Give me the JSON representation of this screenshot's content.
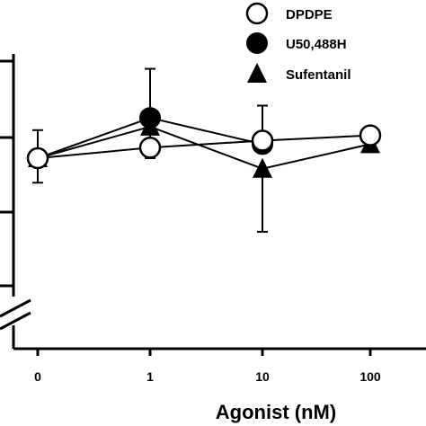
{
  "chart_data": {
    "type": "line",
    "x_scale": "categorical-log",
    "categories": [
      "0",
      "1",
      "10",
      "100"
    ],
    "xlabel": "Agonist (nM)",
    "ylabel": "",
    "y_ticks_visible": 4,
    "y_axis_break": true,
    "legend_position": "top-right",
    "series": [
      {
        "name": "DPDPE",
        "marker": "open-circle",
        "x": [
          "0",
          "1",
          "10",
          "100"
        ],
        "values": [
          1.0,
          1.06,
          1.1,
          1.13
        ],
        "err_low": [
          null,
          0.06,
          null,
          null
        ],
        "err_high": [
          null,
          null,
          0.2,
          null
        ]
      },
      {
        "name": "U50,488H",
        "marker": "filled-circle",
        "x": [
          "0",
          "1",
          "10"
        ],
        "values": [
          1.0,
          1.23,
          1.08
        ],
        "err_low": [
          0.14,
          null,
          null
        ],
        "err_high": [
          0.16,
          0.28,
          null
        ]
      },
      {
        "name": "Sufentanil",
        "marker": "filled-triangle",
        "x": [
          "0",
          "1",
          "10",
          "100"
        ],
        "values": [
          1.0,
          1.18,
          0.94,
          1.08
        ],
        "err_low": [
          null,
          0.18,
          0.36,
          null
        ],
        "err_high": [
          null,
          null,
          null,
          null
        ]
      }
    ]
  }
}
